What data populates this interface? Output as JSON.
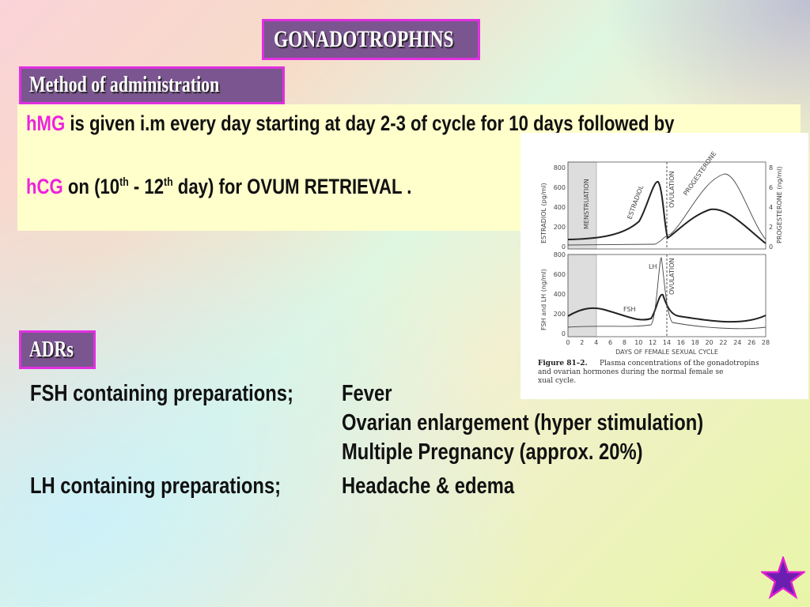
{
  "title": "GONADOTROPHINS",
  "administration": {
    "heading": "Method of administration",
    "line1": {
      "drug": "hMG",
      "text": " is given i.m  every day starting at day 2-3 of cycle  for 10 days followed by"
    },
    "line2": {
      "drug": "hCG",
      "pre": " on (10",
      "sup1": "th",
      "mid": " - 12",
      "sup2": "th",
      "post": " day) for OVUM RETRIEVAL ."
    }
  },
  "figure": {
    "top": {
      "yticks": [
        800,
        600,
        400,
        200,
        0
      ],
      "ylabel": "ESTRADIOL (pg/ml)",
      "y2ticks": [
        8,
        6,
        4,
        2,
        0
      ],
      "y2label": "PROGESTERONE (ng/ml)",
      "labels": [
        "MENSTRUATION",
        "ESTRADIOL",
        "OVULATION",
        "PROGESTERONE"
      ]
    },
    "bottom": {
      "yticks": [
        800,
        600,
        400,
        200,
        0
      ],
      "ylabel": "FSH and LH (ng/ml)",
      "labels": [
        "LH",
        "FSH",
        "OVULATION"
      ]
    },
    "xticks": [
      0,
      2,
      4,
      6,
      8,
      10,
      12,
      14,
      16,
      18,
      20,
      22,
      24,
      26,
      28
    ],
    "xlabel": "DAYS OF FEMALE SEXUAL CYCLE",
    "caption": {
      "number": "Figure 81–2.",
      "text": " Plasma concentrations of the gonadotropins and ovarian hormones during the normal female sexual cycle."
    }
  },
  "adrs": {
    "heading": "ADRs",
    "rows": [
      {
        "label": "FSH containing preparations;",
        "items": [
          "Fever",
          "Ovarian enlargement (hyper stimulation)",
          "Multiple Pregnancy (approx. 20%)"
        ]
      },
      {
        "label": "LH containing preparations;",
        "items": [
          "Headache  &  edema"
        ]
      }
    ]
  }
}
